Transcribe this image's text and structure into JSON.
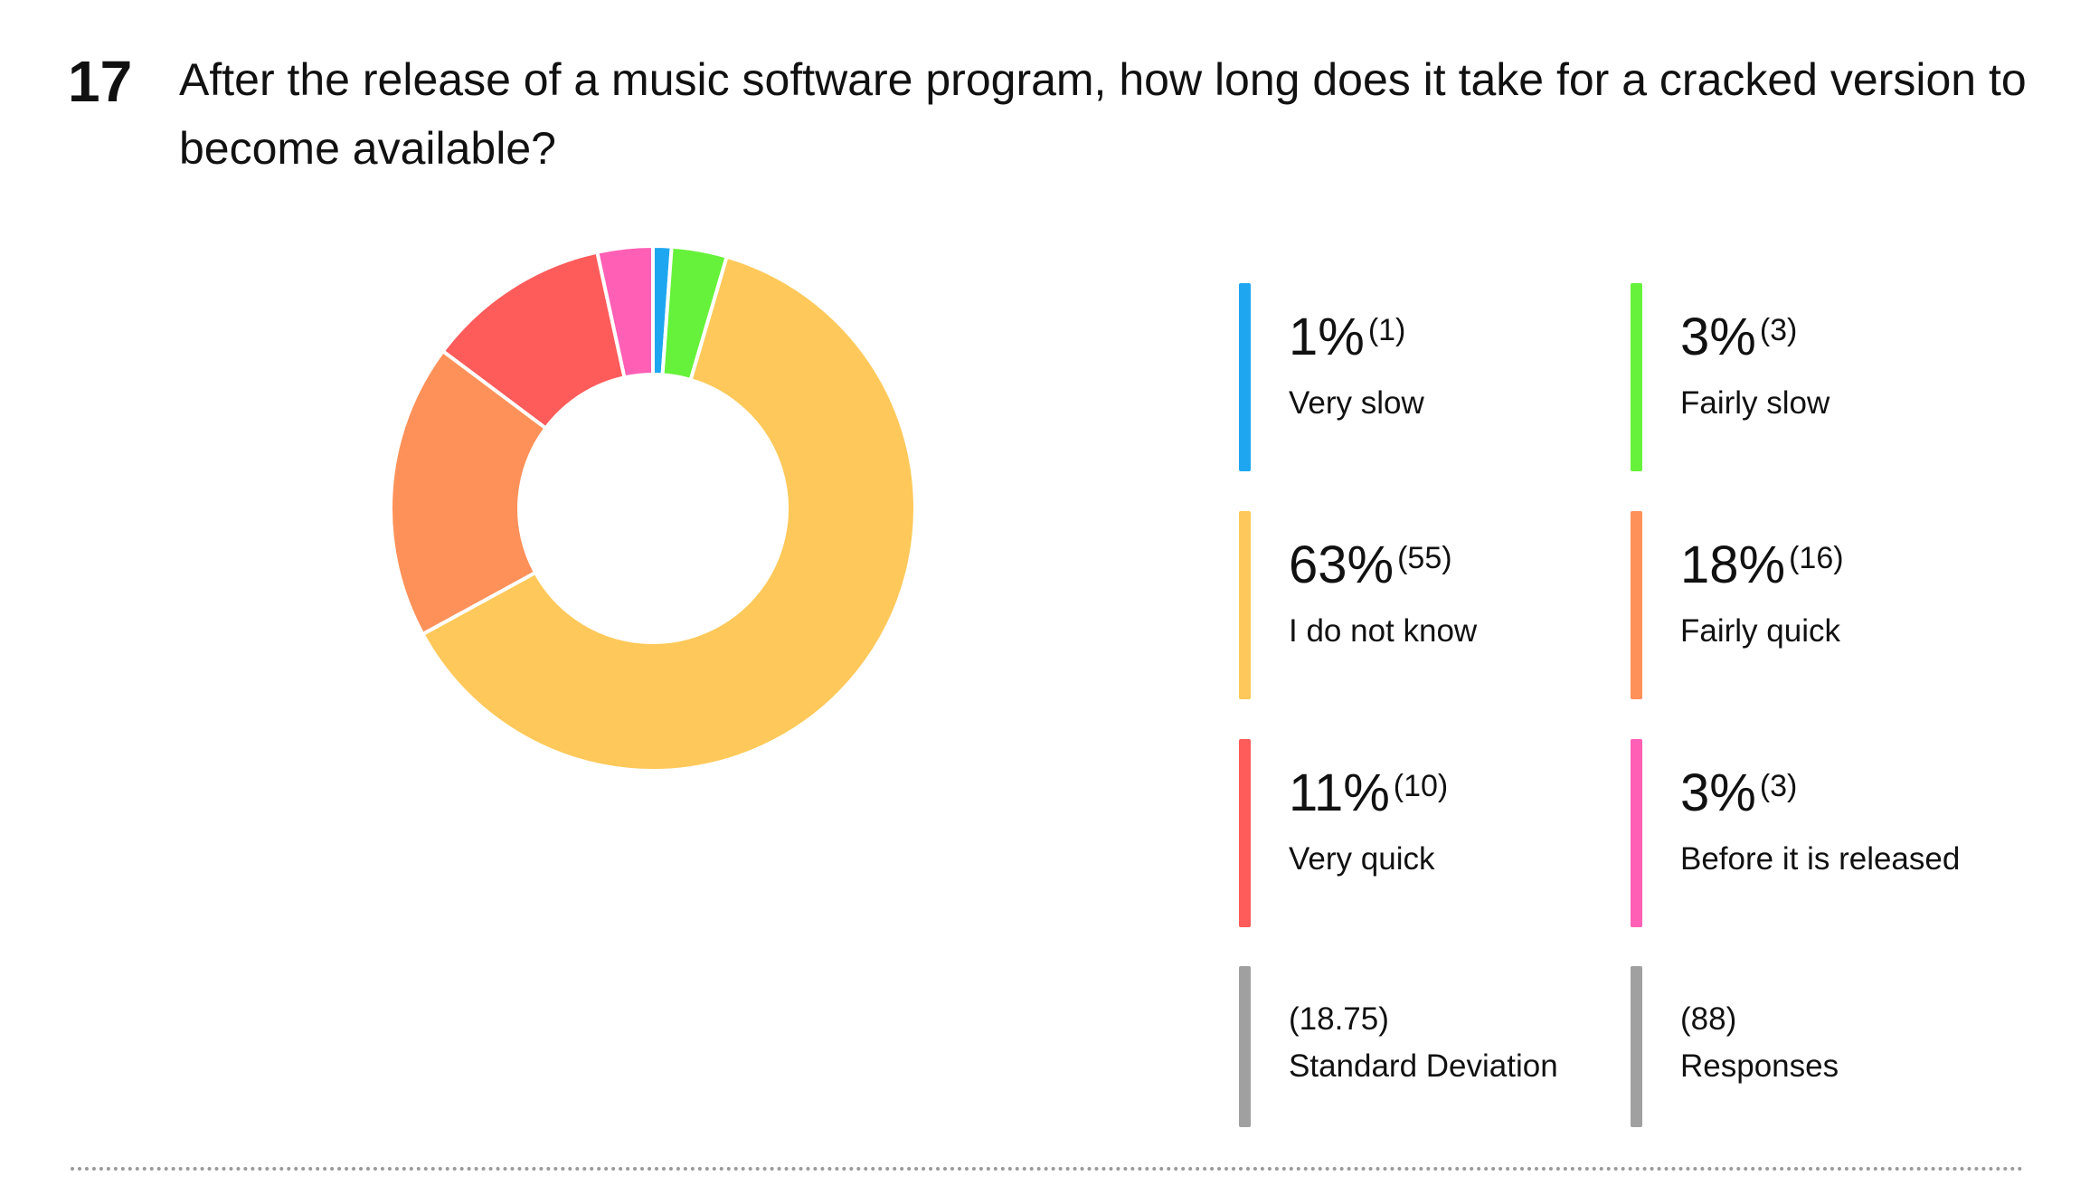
{
  "question": {
    "number": "17",
    "text": "After the release of a music software program, how long does it take for a cracked version to become available?"
  },
  "chart_data": {
    "type": "pie",
    "donut": true,
    "slices": [
      {
        "label": "Very slow",
        "percent": "1%",
        "count": "(1)",
        "value": 1,
        "color": "#1ea7f0"
      },
      {
        "label": "Fairly slow",
        "percent": "3%",
        "count": "(3)",
        "value": 3,
        "color": "#66f23a"
      },
      {
        "label": "I do not know",
        "percent": "63%",
        "count": "(55)",
        "value": 55,
        "color": "#fec95a"
      },
      {
        "label": "Fairly quick",
        "percent": "18%",
        "count": "(16)",
        "value": 16,
        "color": "#fe9159"
      },
      {
        "label": "Very quick",
        "percent": "11%",
        "count": "(10)",
        "value": 10,
        "color": "#fe5b5b"
      },
      {
        "label": "Before it is released",
        "percent": "3%",
        "count": "(3)",
        "value": 3,
        "color": "#ff5fb5"
      }
    ],
    "stats": [
      {
        "value": "(18.75)",
        "label": "Standard Deviation",
        "color": "#a0a0a0"
      },
      {
        "value": "(88)",
        "label": "Responses",
        "color": "#a0a0a0"
      }
    ]
  }
}
